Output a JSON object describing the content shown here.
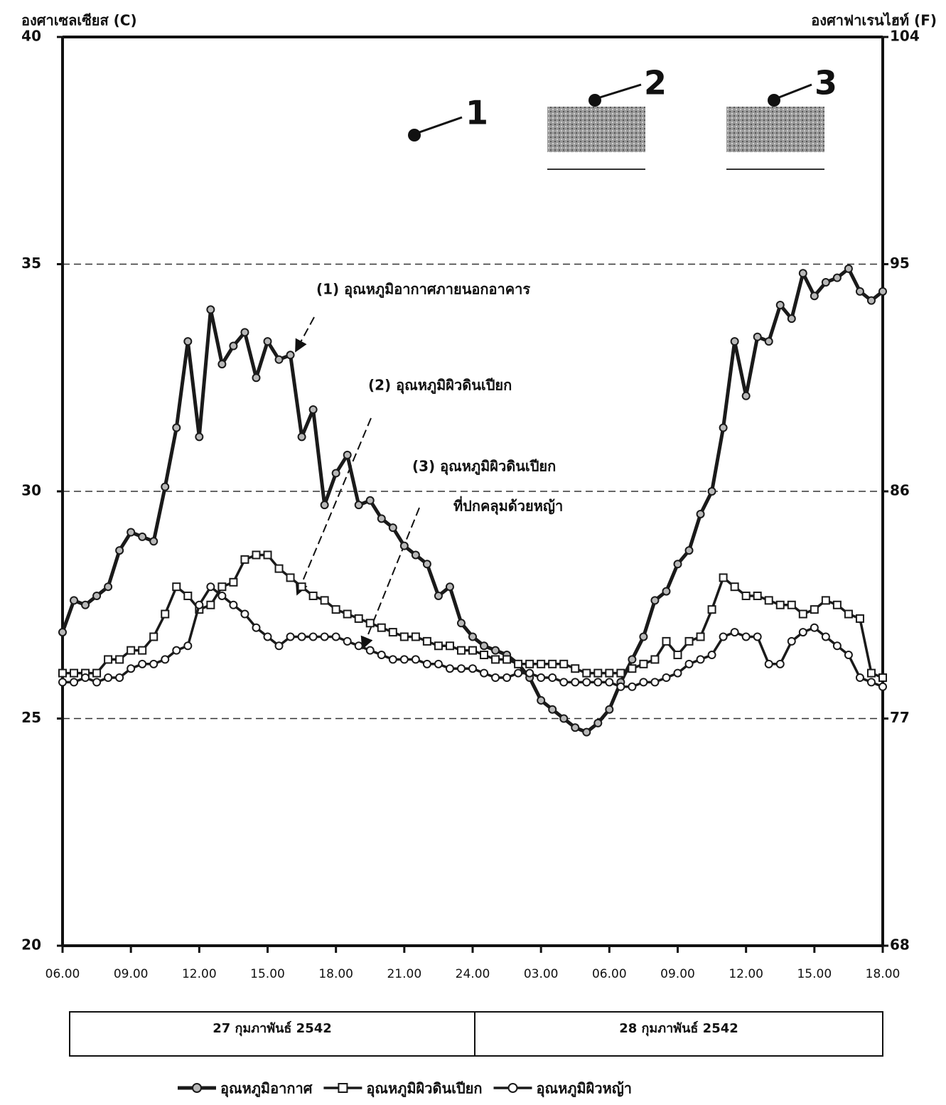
{
  "chart_data": {
    "type": "line",
    "y_label": "องศาเซลเซียส (C)",
    "y2_label": "องศาฟาเรนไฮท์ (F)",
    "categories": [
      "06.00",
      null,
      null,
      null,
      null,
      null,
      "09.00",
      null,
      null,
      null,
      null,
      null,
      "12.00",
      null,
      null,
      null,
      null,
      null,
      "15.00",
      null,
      null,
      null,
      null,
      null,
      "18.00",
      null,
      null,
      null,
      null,
      null,
      "21.00",
      null,
      null,
      null,
      null,
      null,
      "24.00",
      null,
      null,
      null,
      null,
      null,
      "03.00",
      null,
      null,
      null,
      null,
      null,
      "06.00",
      null,
      null,
      null,
      null,
      null,
      "09.00",
      null,
      null,
      null,
      null,
      null,
      "12.00",
      null,
      null,
      null,
      null,
      null,
      "15.00",
      null,
      null,
      null,
      null,
      null,
      "18.00"
    ],
    "series": [
      {
        "name": "อุณหภูมิอากาศ",
        "color": "#1a1a1a",
        "line_width": 5,
        "marker": "circle",
        "marker_fill": "#b8b8b8",
        "values": [
          26.9,
          27.6,
          27.5,
          27.7,
          27.9,
          28.7,
          29.1,
          29.0,
          28.9,
          30.1,
          31.4,
          33.3,
          31.2,
          34.0,
          32.8,
          33.2,
          33.5,
          32.5,
          33.3,
          32.9,
          33.0,
          31.2,
          31.8,
          29.7,
          30.4,
          30.8,
          29.7,
          29.8,
          29.4,
          29.2,
          28.8,
          28.6,
          28.4,
          27.7,
          27.9,
          27.1,
          26.8,
          26.6,
          26.5,
          26.4,
          26.2,
          25.9,
          25.4,
          25.2,
          25.0,
          24.8,
          24.7,
          24.9,
          25.2,
          25.8,
          26.3,
          26.8,
          27.6,
          27.8,
          28.4,
          28.7,
          29.5,
          30.0,
          31.4,
          33.3,
          32.1,
          33.4,
          33.3,
          34.1,
          33.8,
          34.8,
          34.3,
          34.6,
          34.7,
          34.9,
          34.4,
          34.2,
          34.4
        ]
      },
      {
        "name": "อุณหภูมิผิวดินเปียก",
        "color": "#1a1a1a",
        "line_width": 3.5,
        "marker": "square",
        "marker_fill": "#ffffff",
        "values": [
          26.0,
          26.0,
          26.0,
          26.0,
          26.3,
          26.3,
          26.5,
          26.5,
          26.8,
          27.3,
          27.9,
          27.7,
          27.4,
          27.5,
          27.9,
          28.0,
          28.5,
          28.6,
          28.6,
          28.3,
          28.1,
          27.9,
          27.7,
          27.6,
          27.4,
          27.3,
          27.2,
          27.1,
          27.0,
          26.9,
          26.8,
          26.8,
          26.7,
          26.6,
          26.6,
          26.5,
          26.5,
          26.4,
          26.3,
          26.3,
          26.2,
          26.2,
          26.2,
          26.2,
          26.2,
          26.1,
          26.0,
          26.0,
          26.0,
          26.0,
          26.1,
          26.2,
          26.3,
          26.7,
          26.4,
          26.7,
          26.8,
          27.4,
          28.1,
          27.9,
          27.7,
          27.7,
          27.6,
          27.5,
          27.5,
          27.3,
          27.4,
          27.6,
          27.5,
          27.3,
          27.2,
          26.0,
          25.9
        ]
      },
      {
        "name": "อุณหภูมิผิวหญ้า",
        "color": "#1a1a1a",
        "line_width": 3.5,
        "marker": "circle",
        "marker_fill": "#ffffff",
        "values": [
          25.8,
          25.8,
          25.9,
          25.8,
          25.9,
          25.9,
          26.1,
          26.2,
          26.2,
          26.3,
          26.5,
          26.6,
          27.5,
          27.9,
          27.7,
          27.5,
          27.3,
          27.0,
          26.8,
          26.6,
          26.8,
          26.8,
          26.8,
          26.8,
          26.8,
          26.7,
          26.6,
          26.5,
          26.4,
          26.3,
          26.3,
          26.3,
          26.2,
          26.2,
          26.1,
          26.1,
          26.1,
          26.0,
          25.9,
          25.9,
          26.0,
          26.0,
          25.9,
          25.9,
          25.8,
          25.8,
          25.8,
          25.8,
          25.8,
          25.7,
          25.7,
          25.8,
          25.8,
          25.9,
          26.0,
          26.2,
          26.3,
          26.4,
          26.8,
          26.9,
          26.8,
          26.8,
          26.2,
          26.2,
          26.7,
          26.9,
          27.0,
          26.8,
          26.6,
          26.4,
          25.9,
          25.8,
          25.7
        ]
      }
    ],
    "ylim": [
      20,
      40
    ],
    "yticks": [
      20,
      25,
      30,
      35,
      40
    ],
    "y2lim": [
      68,
      104
    ],
    "y2ticks": [
      68,
      77,
      86,
      95,
      104
    ],
    "grid": true,
    "date_labels": [
      "27 กุมภาพันธ์ 2542",
      "28 กุมภาพันธ์ 2542"
    ],
    "annotations": [
      "(1) อุณหภูมิอากาศภายนอกอาคาร",
      "(2) อุณหภูมิผิวดินเปียก",
      "(3) อุณหภูมิผิวดินเปียก",
      "ที่ปกคลุมด้วยหญ้า"
    ],
    "site_labels": [
      "1",
      "2",
      "3"
    ]
  }
}
